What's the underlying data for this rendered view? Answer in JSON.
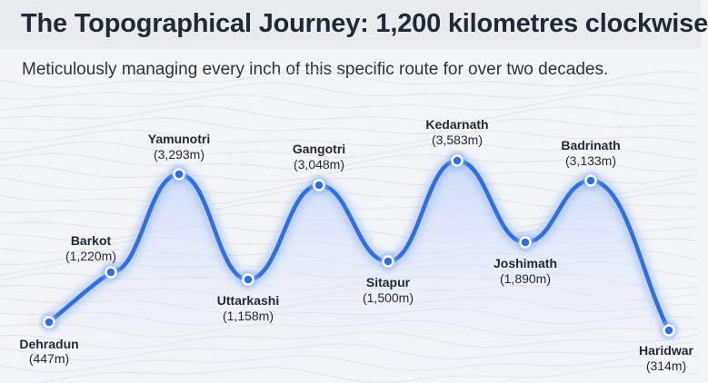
{
  "header": {
    "title": "The Topographical Journey: 1,200 kilometres clockwise",
    "subtitle": "Meticulously managing every inch of this specific route for over two decades."
  },
  "colors": {
    "route": "#2f6fe0",
    "route_glow": "#8fb4f5",
    "area_fill": "#dbe6fb",
    "marker_fill": "#2f6fe0",
    "marker_ring": "#ffffff",
    "contour": "#d6dbe2"
  },
  "stops": [
    {
      "name": "Dehradun",
      "elevation": "(447m)"
    },
    {
      "name": "Barkot",
      "elevation": "(1,220m)"
    },
    {
      "name": "Yamunotri",
      "elevation": "(3,293m)"
    },
    {
      "name": "Uttarkashi",
      "elevation": "(1,158m)"
    },
    {
      "name": "Gangotri",
      "elevation": "(3,048m)"
    },
    {
      "name": "Sitapur",
      "elevation": "(1,500m)"
    },
    {
      "name": "Kedarnath",
      "elevation": "(3,583m)"
    },
    {
      "name": "Joshimath",
      "elevation": "(1,890m)"
    },
    {
      "name": "Badrinath",
      "elevation": "(3,133m)"
    },
    {
      "name": "Haridwar",
      "elevation": "(314m)"
    }
  ]
}
